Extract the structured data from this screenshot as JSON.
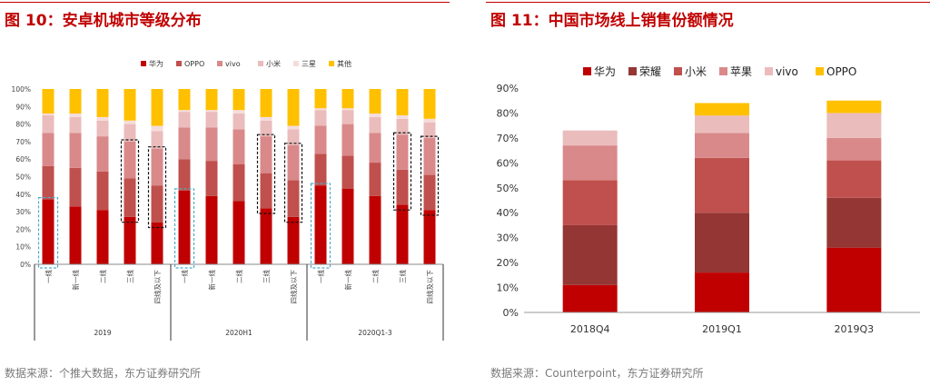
{
  "figures": [
    {
      "title": "图 10：安卓机城市等级分布",
      "source": "数据来源：个推大数据，东方证券研究所"
    },
    {
      "title": "图 11：中国市场线上销售份额情况",
      "source": "数据来源：Counterpoint，东方证券研究所"
    }
  ],
  "chart_data": [
    {
      "type": "bar",
      "stacked": true,
      "legend_position": "top",
      "series": [
        {
          "name": "华为",
          "color": "#c00000",
          "values": [
            37,
            33,
            31,
            27,
            24,
            42,
            39,
            36,
            32,
            27,
            45,
            43,
            39,
            34,
            31
          ]
        },
        {
          "name": "OPPO",
          "color": "#c0504d",
          "values": [
            19,
            22,
            22,
            22,
            21,
            18,
            20,
            21,
            20,
            21,
            18,
            19,
            19,
            20,
            20
          ]
        },
        {
          "name": "vivo",
          "color": "#d9898a",
          "values": [
            19,
            20,
            20,
            21,
            21,
            18,
            19,
            20,
            21,
            20,
            16,
            18,
            17,
            20,
            21
          ]
        },
        {
          "name": "小米",
          "color": "#ebbcbc",
          "values": [
            10,
            9,
            9,
            10,
            10,
            9,
            9,
            9,
            9,
            9,
            9,
            8,
            9,
            9,
            9
          ]
        },
        {
          "name": "三星",
          "color": "#f5dcdc",
          "values": [
            1,
            2,
            2,
            2,
            3,
            1,
            1,
            2,
            2,
            2,
            1,
            1,
            2,
            2,
            2
          ]
        },
        {
          "name": "其他",
          "color": "#ffc000",
          "values": [
            14,
            14,
            16,
            18,
            21,
            12,
            12,
            12,
            16,
            21,
            11,
            11,
            14,
            15,
            17
          ]
        }
      ],
      "categories": [
        "一线",
        "新一线",
        "二线",
        "三线",
        "四线及以下",
        "一线",
        "新一线",
        "二线",
        "三线",
        "四线及以下",
        "一线",
        "新一线",
        "二线",
        "三线",
        "四线及以下"
      ],
      "groups": [
        {
          "label": "2019",
          "count": 5
        },
        {
          "label": "2020H1",
          "count": 5
        },
        {
          "label": "2020Q1-3",
          "count": 5
        }
      ],
      "yticks": [
        "0%",
        "10%",
        "20%",
        "30%",
        "40%",
        "50%",
        "60%",
        "70%",
        "80%",
        "90%",
        "100%"
      ],
      "ylim": [
        0,
        100
      ],
      "highlight_blue_bars": [
        0,
        5,
        10
      ],
      "highlight_black_bars": [
        3,
        4,
        8,
        9,
        13,
        14
      ]
    },
    {
      "type": "bar",
      "stacked": true,
      "legend_position": "top",
      "categories": [
        "2018Q4",
        "2019Q1",
        "2019Q3"
      ],
      "series": [
        {
          "name": "华为",
          "color": "#c00000",
          "values": [
            11,
            16,
            26
          ]
        },
        {
          "name": "荣耀",
          "color": "#943634",
          "values": [
            24,
            24,
            20
          ]
        },
        {
          "name": "小米",
          "color": "#c0504d",
          "values": [
            18,
            22,
            15
          ]
        },
        {
          "name": "苹果",
          "color": "#d9898a",
          "values": [
            14,
            10,
            9
          ]
        },
        {
          "name": "vivo",
          "color": "#ebbcbc",
          "values": [
            6,
            7,
            10
          ]
        },
        {
          "name": "OPPO",
          "color": "#ffc000",
          "values": [
            0,
            5,
            5
          ]
        }
      ],
      "yticks": [
        "0%",
        "10%",
        "20%",
        "30%",
        "40%",
        "50%",
        "60%",
        "70%",
        "80%",
        "90%"
      ],
      "ylim": [
        0,
        90
      ]
    }
  ]
}
